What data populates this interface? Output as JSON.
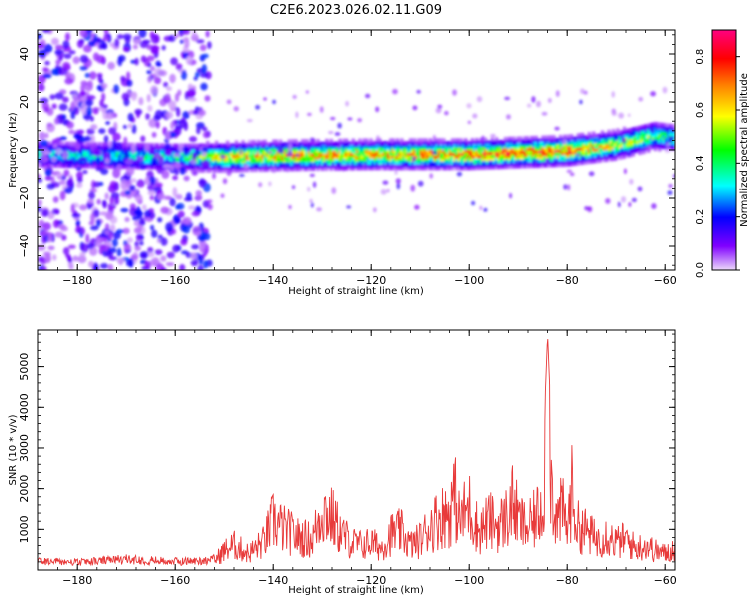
{
  "title": "C2E6.2023.026.02.11.G09",
  "chart_data": [
    {
      "type": "heatmap",
      "xlabel": "Height of straight line (km)",
      "ylabel": "Frequency (Hz)",
      "xlim": [
        -188,
        -58
      ],
      "ylim": [
        -50,
        50
      ],
      "x_ticks": [
        -180,
        -160,
        -140,
        -120,
        -100,
        -80,
        -60
      ],
      "y_ticks": [
        -40,
        -20,
        0,
        20,
        40
      ],
      "colorbar": {
        "label": "Normalized spectral amplitude",
        "range": [
          0,
          0.9
        ],
        "ticks": [
          0.0,
          0.2,
          0.4,
          0.6,
          0.8
        ],
        "colormap": [
          "#e6ccf7",
          "#8000ff",
          "#0000ff",
          "#00ffff",
          "#00ff00",
          "#ffff00",
          "#ff8000",
          "#ff0000",
          "#ff00ff"
        ]
      },
      "signal_track": {
        "description_points_x": [
          -188,
          -160,
          -150,
          -140,
          -120,
          -100,
          -80,
          -70,
          -62,
          -58
        ],
        "frequency_hz": [
          -2,
          -3,
          -3,
          -2.5,
          -2,
          -2,
          -0.5,
          2,
          6,
          5
        ],
        "peak_amplitude": [
          0.35,
          0.4,
          0.65,
          0.7,
          0.7,
          0.75,
          0.8,
          0.6,
          0.5,
          0.4
        ]
      },
      "noise_region_x": [
        -188,
        -153
      ]
    },
    {
      "type": "line",
      "xlabel": "Height of straight line (km)",
      "ylabel": "SNR (10 * v/v)",
      "xlim": [
        -188,
        -58
      ],
      "ylim": [
        0,
        5900
      ],
      "x_ticks": [
        -180,
        -160,
        -140,
        -120,
        -100,
        -80,
        -60
      ],
      "y_ticks": [
        1000,
        2000,
        3000,
        4000,
        5000
      ],
      "color": "#e83a3a",
      "series": [
        {
          "x": [
            -188,
            -180,
            -170,
            -160,
            -155,
            -152,
            -150,
            -148,
            -145,
            -142,
            -140,
            -138,
            -135,
            -132,
            -130,
            -128,
            -126,
            -124,
            -122,
            -120,
            -118,
            -116,
            -114,
            -112,
            -110,
            -108,
            -106,
            -104,
            -103,
            -102,
            -100,
            -98,
            -96,
            -94,
            -92,
            -91,
            -90,
            -88,
            -86,
            -85,
            -84,
            -83,
            -82,
            -81,
            -80,
            -79,
            -78,
            -76,
            -74,
            -72,
            -70,
            -68,
            -66,
            -64,
            -62,
            -60,
            -58
          ],
          "y": [
            300,
            250,
            350,
            280,
            300,
            350,
            700,
            900,
            600,
            1000,
            1800,
            1500,
            1200,
            1100,
            2200,
            1900,
            1300,
            1000,
            900,
            1000,
            800,
            1300,
            1400,
            900,
            1100,
            1600,
            1900,
            2100,
            2750,
            1800,
            2300,
            1400,
            1800,
            1600,
            2000,
            2500,
            1800,
            1500,
            2000,
            2600,
            5800,
            2700,
            1800,
            2200,
            1500,
            2900,
            1600,
            1400,
            1100,
            1300,
            1000,
            1100,
            800,
            900,
            700,
            600,
            800
          ]
        }
      ]
    }
  ]
}
